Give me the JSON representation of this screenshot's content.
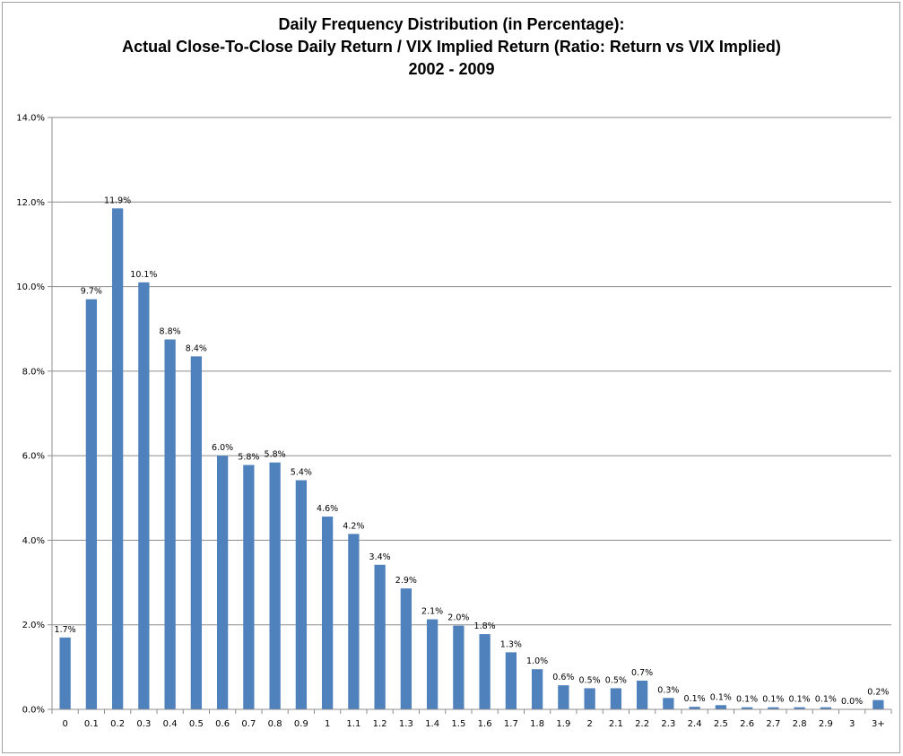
{
  "chart_data": {
    "type": "bar",
    "title_lines": [
      "Daily Frequency Distribution (in Percentage):",
      "Actual Close-To-Close Daily Return / VIX Implied Return (Ratio: Return vs VIX Implied)",
      "2002 - 2009"
    ],
    "xlabel": "",
    "ylabel": "",
    "categories": [
      "0",
      "0.1",
      "0.2",
      "0.3",
      "0.4",
      "0.5",
      "0.6",
      "0.7",
      "0.8",
      "0.9",
      "1",
      "1.1",
      "1.2",
      "1.3",
      "1.4",
      "1.5",
      "1.6",
      "1.7",
      "1.8",
      "1.9",
      "2",
      "2.1",
      "2.2",
      "2.3",
      "2.4",
      "2.5",
      "2.6",
      "2.7",
      "2.8",
      "2.9",
      "3",
      "3+"
    ],
    "values": [
      1.7,
      9.7,
      11.85,
      10.1,
      8.75,
      8.35,
      6.0,
      5.78,
      5.84,
      5.42,
      4.56,
      4.15,
      3.42,
      2.86,
      2.13,
      1.98,
      1.78,
      1.35,
      0.95,
      0.57,
      0.5,
      0.5,
      0.68,
      0.27,
      0.06,
      0.1,
      0.05,
      0.05,
      0.05,
      0.05,
      0.0,
      0.22
    ],
    "data_labels": [
      "1.7%",
      "9.7%",
      "11.9%",
      "10.1%",
      "8.8%",
      "8.4%",
      "6.0%",
      "5.8%",
      "5.8%",
      "5.4%",
      "4.6%",
      "4.2%",
      "3.4%",
      "2.9%",
      "2.1%",
      "2.0%",
      "1.8%",
      "1.3%",
      "1.0%",
      "0.6%",
      "0.5%",
      "0.5%",
      "0.7%",
      "0.3%",
      "0.1%",
      "0.1%",
      "0.1%",
      "0.1%",
      "0.1%",
      "0.1%",
      "0.0%",
      "0.2%"
    ],
    "y_ticks": [
      "0.0%",
      "2.0%",
      "4.0%",
      "6.0%",
      "8.0%",
      "10.0%",
      "12.0%",
      "14.0%"
    ],
    "ylim": [
      0,
      14
    ],
    "grid": true,
    "legend": "none",
    "bar_color": "#4f81bd"
  }
}
